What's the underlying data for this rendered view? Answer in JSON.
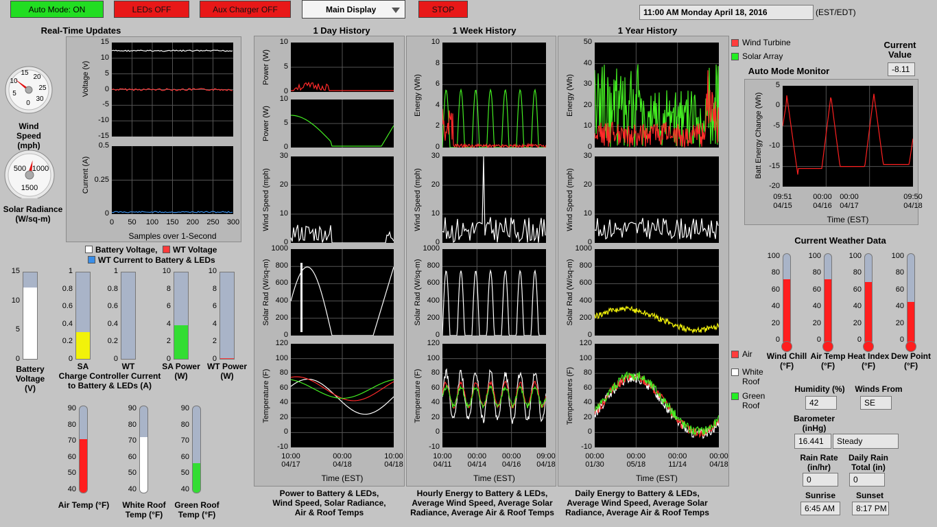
{
  "toolbar": {
    "auto_mode": "Auto Mode: ON",
    "leds": "LEDs OFF",
    "aux_charger": "Aux Charger OFF",
    "display_select": "Main Display",
    "stop": "STOP",
    "datetime": "11:00 AM  Monday April 18, 2016",
    "timezone": "(EST/EDT)"
  },
  "realtime": {
    "title": "Real-Time Updates",
    "wind_gauge": {
      "label": "Wind Speed (mph)",
      "ticks": [
        "5",
        "10",
        "15",
        "20",
        "25",
        "30",
        "0"
      ],
      "value": 2,
      "max": 35
    },
    "solar_gauge": {
      "label": "Solar Radiance (W/sq-m)",
      "ticks": [
        "500",
        "1000",
        "1500"
      ],
      "value": 300,
      "max": 1500
    },
    "voltage_chart": {
      "ylabel": "Voltage (v)",
      "yticks": [
        "15",
        "10",
        "5",
        "0",
        "-5",
        "-10",
        "-15"
      ],
      "ylim": [
        -15,
        15
      ]
    },
    "current_chart": {
      "ylabel": "Current (A)",
      "yticks": [
        "0.5",
        "0.25",
        "0"
      ],
      "xticks": [
        "0",
        "50",
        "100",
        "150",
        "200",
        "250",
        "300"
      ],
      "xlabel": "Samples over 1-Second",
      "ylim": [
        0,
        0.5
      ]
    },
    "legend": {
      "battery": "Battery Voltage,",
      "wt": "WT Voltage",
      "wt_current": "WT Current to Battery & LEDs"
    },
    "colors": {
      "battery": "#ffffff",
      "wt": "#ff3b3b",
      "current": "#3a8ee8"
    }
  },
  "bars": [
    {
      "name": "battery",
      "label": "Battery Voltage (V)",
      "ticks": [
        "15",
        "10",
        "5",
        "0"
      ],
      "max": 15,
      "value": 12.4,
      "color": "#ffffff"
    },
    {
      "name": "sa-charge",
      "label": "SA",
      "ticks": [
        "1",
        "0.8",
        "0.6",
        "0.4",
        "0.2",
        "0"
      ],
      "max": 1,
      "value": 0.31,
      "color": "#f2f20a"
    },
    {
      "name": "wt-charge",
      "label": "WT",
      "ticks": [
        "1",
        "0.8",
        "0.6",
        "0.4",
        "0.2",
        "0"
      ],
      "max": 1,
      "value": 0.0,
      "color": "#ff3b3b"
    },
    {
      "name": "sa-power",
      "label": "SA Power (W)",
      "ticks": [
        "10",
        "8",
        "6",
        "4",
        "2",
        "0"
      ],
      "max": 10,
      "value": 3.9,
      "color": "#33dd33"
    },
    {
      "name": "wt-power",
      "label": "WT Power (W)",
      "ticks": [
        "10",
        "8",
        "6",
        "4",
        "2",
        "0"
      ],
      "max": 10,
      "value": 0.1,
      "color": "#ff3b3b"
    }
  ],
  "charge_controller_label": "Charge Controller Current to Battery & LEDs (A)",
  "temp_bars": [
    {
      "name": "air",
      "label": "Air Temp (°F)",
      "value": 71,
      "color": "#ff1e1e"
    },
    {
      "name": "white-roof",
      "label": "White Roof Temp (°F)",
      "value": 72,
      "color": "#ffffff"
    },
    {
      "name": "green-roof",
      "label": "Green Roof Temp (°F)",
      "value": 57,
      "color": "#33dd33"
    }
  ],
  "temp_ticks": [
    "90",
    "80",
    "70",
    "60",
    "50",
    "40"
  ],
  "history": {
    "day": {
      "title": "1 Day History",
      "caption": "Power to Battery & LEDs, Wind Speed, Solar Radiance, Air & Roof Temps",
      "ylabels": [
        "Power (W)",
        "Power (W)",
        "Wind Speed (mph)",
        "Solar Rad (W/sq-m)",
        "Temperature (F)"
      ],
      "xticks": [
        [
          "10:00",
          "04/17"
        ],
        [
          "00:00",
          "04/18"
        ],
        [
          "10:00",
          "04/18"
        ]
      ],
      "xlabel": "Time (EST)"
    },
    "week": {
      "title": "1 Week History",
      "caption": "Hourly Energy to Battery & LEDs, Average Wind Speed,  Average Solar Radiance, Average Air & Roof Temps",
      "ylabels": [
        "Energy (Wh)",
        "Wind Speed (mph)",
        "Solar Rad (W/sq-m)",
        "Temperature (F)"
      ],
      "xticks": [
        [
          "10:00",
          "04/11"
        ],
        [
          "00:00",
          "04/14"
        ],
        [
          "00:00",
          "04/16"
        ],
        [
          "09:00",
          "04/18"
        ]
      ],
      "xlabel": "Time (EST)"
    },
    "year": {
      "title": "1 Year History",
      "caption": "Daily Energy to Battery & LEDs, Average Wind Speed,  Average Solar Radiance, Average Air & Roof Temps",
      "ylabels": [
        "Energy (Wh)",
        "Wind Speed (mph)",
        "Solar Rad (W/sq-m)",
        "Temperatures (F)"
      ],
      "xticks": [
        [
          "00:00",
          "01/30"
        ],
        [
          "00:00",
          "05/18"
        ],
        [
          "00:00",
          "11/14"
        ],
        [
          "00:00",
          "04/18"
        ]
      ],
      "xlabel": "Time (EST)"
    }
  },
  "ticks": {
    "power_small": [
      "10",
      "5",
      "0"
    ],
    "power_energy": [
      "10",
      "8",
      "6",
      "4",
      "2",
      "0"
    ],
    "energy_year": [
      "50",
      "40",
      "30",
      "20",
      "10",
      "0"
    ],
    "wind": [
      "30",
      "20",
      "10",
      "0"
    ],
    "solar": [
      "1000",
      "800",
      "600",
      "400",
      "200",
      "0"
    ],
    "temp": [
      "120",
      "100",
      "80",
      "60",
      "40",
      "20",
      "0",
      "-10"
    ]
  },
  "legends": {
    "energy": [
      {
        "label": "Wind Turbine",
        "color": "#ff3b3b"
      },
      {
        "label": "Solar Array",
        "color": "#22ee22"
      }
    ],
    "temp": [
      {
        "label": "Air",
        "color": "#ff3b3b"
      },
      {
        "label": "White Roof",
        "color": "#ffffff"
      },
      {
        "label": "Green Roof",
        "color": "#22ee22"
      }
    ]
  },
  "auto_mode_monitor": {
    "title": "Auto Mode Monitor",
    "current_value_label": "Current Value",
    "current_value": "-8.11",
    "ylabel": "Batt Energy Change (Wh)",
    "yticks": [
      "5",
      "0",
      "-5",
      "-10",
      "-15",
      "-20"
    ],
    "xticks": [
      [
        "09:51",
        "04/15"
      ],
      [
        "00:00",
        "04/16"
      ],
      [
        "00:00",
        "04/17"
      ],
      [
        "09:50",
        "04/18"
      ]
    ],
    "xlabel": "Time (EST)"
  },
  "weather": {
    "title": "Current Weather Data",
    "ticks": [
      "100",
      "80",
      "60",
      "40",
      "20",
      "0"
    ],
    "gauges": [
      {
        "name": "wind-chill",
        "label": "Wind Chill (°F)",
        "value": 72
      },
      {
        "name": "air-temp",
        "label": "Air Temp (°F)",
        "value": 72
      },
      {
        "name": "heat-index",
        "label": "Heat Index (°F)",
        "value": 69
      },
      {
        "name": "dew-point",
        "label": "Dew Point (°F)",
        "value": 47
      }
    ],
    "humidity_label": "Humidity (%)",
    "humidity": "42",
    "winds_from_label": "Winds From",
    "winds_from": "SE",
    "barometer_label": "Barometer (inHg)",
    "barometer": "16.441",
    "barometer_trend": "Steady",
    "rain_rate_label": "Rain Rate (in/hr)",
    "rain_rate": "0",
    "daily_rain_label": "Daily Rain Total (in)",
    "daily_rain": "0",
    "sunrise_label": "Sunrise",
    "sunrise": "6:45 AM",
    "sunset_label": "Sunset",
    "sunset": "8:17 PM"
  }
}
